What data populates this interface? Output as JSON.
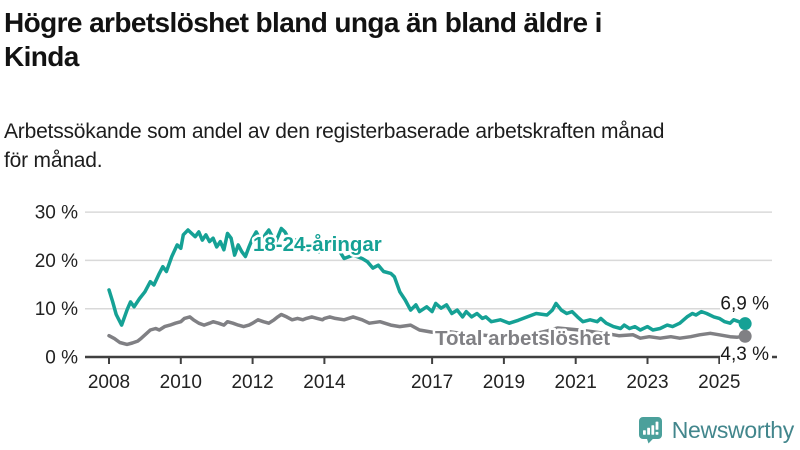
{
  "header": {
    "title_lines": [
      "Högre arbetslöshet bland unga än bland äldre i",
      "Kinda"
    ],
    "subtitle_lines": [
      "Arbetssökande som andel av den registerbaserade arbetskraften månad",
      "för månad."
    ]
  },
  "footer": {
    "logo_text": "Newsworthy",
    "logo_icon": "newsworthy-speech-bubble-bar-chart-icon",
    "logo_icon_color": "#4ba09b",
    "logo_text_color": "#42868c"
  },
  "chart_data": {
    "type": "line",
    "title": "Högre arbetslöshet bland unga än bland äldre i Kinda",
    "subtitle": "Arbetssökande som andel av den registerbaserade arbetskraften månad för månad.",
    "xlabel": "",
    "ylabel": "",
    "x_axis": {
      "ticks": [
        {
          "v": 2008,
          "label": "2008"
        },
        {
          "v": 2010,
          "label": "2010"
        },
        {
          "v": 2012,
          "label": "2012"
        },
        {
          "v": 2014,
          "label": "2014"
        },
        {
          "v": 2017,
          "label": "2017"
        },
        {
          "v": 2019,
          "label": "2019"
        },
        {
          "v": 2021,
          "label": "2021"
        },
        {
          "v": 2023,
          "label": "2023"
        },
        {
          "v": 2025,
          "label": "2025"
        }
      ],
      "range": [
        2007.3,
        2026.3
      ]
    },
    "y_axis": {
      "ticks": [
        {
          "v": 0,
          "label": "0 %"
        },
        {
          "v": 10,
          "label": "10 %"
        },
        {
          "v": 20,
          "label": "20 %"
        },
        {
          "v": 30,
          "label": "30 %"
        }
      ],
      "range": [
        0,
        32
      ],
      "unit": "%"
    },
    "style": {
      "axis_color": "#404040",
      "grid_color": "#d9d9d9",
      "tick_label_color": "#222222",
      "grid_on": true,
      "legend": "inline-labels"
    },
    "series": [
      {
        "name": "18-24-åringar",
        "color": "#15a195",
        "end_label": "6,9 %",
        "end_value": 6.9,
        "points": [
          [
            2008.0,
            13.9
          ],
          [
            2008.1,
            11.5
          ],
          [
            2008.2,
            8.8
          ],
          [
            2008.35,
            6.6
          ],
          [
            2008.5,
            9.7
          ],
          [
            2008.6,
            11.4
          ],
          [
            2008.7,
            10.4
          ],
          [
            2008.85,
            12.1
          ],
          [
            2009.0,
            13.5
          ],
          [
            2009.15,
            15.6
          ],
          [
            2009.25,
            14.9
          ],
          [
            2009.4,
            17.3
          ],
          [
            2009.5,
            18.7
          ],
          [
            2009.6,
            17.7
          ],
          [
            2009.75,
            20.8
          ],
          [
            2009.9,
            23.2
          ],
          [
            2010.0,
            22.5
          ],
          [
            2010.07,
            25.3
          ],
          [
            2010.2,
            26.3
          ],
          [
            2010.3,
            25.6
          ],
          [
            2010.4,
            24.9
          ],
          [
            2010.5,
            25.9
          ],
          [
            2010.6,
            24.2
          ],
          [
            2010.7,
            25.3
          ],
          [
            2010.8,
            23.9
          ],
          [
            2010.9,
            24.6
          ],
          [
            2011.0,
            22.8
          ],
          [
            2011.1,
            23.9
          ],
          [
            2011.2,
            22.2
          ],
          [
            2011.3,
            25.6
          ],
          [
            2011.4,
            24.6
          ],
          [
            2011.5,
            21.1
          ],
          [
            2011.6,
            23.2
          ],
          [
            2011.7,
            21.8
          ],
          [
            2011.8,
            20.8
          ],
          [
            2011.9,
            22.8
          ],
          [
            2012.0,
            24.6
          ],
          [
            2012.1,
            25.9
          ],
          [
            2012.17,
            24.9
          ],
          [
            2012.25,
            23.9
          ],
          [
            2012.35,
            25.3
          ],
          [
            2012.45,
            26.3
          ],
          [
            2012.55,
            24.9
          ],
          [
            2012.65,
            23.9
          ],
          [
            2012.8,
            26.6
          ],
          [
            2012.9,
            25.9
          ],
          [
            2013.0,
            24.6
          ],
          [
            2013.1,
            23.2
          ],
          [
            2013.2,
            24.2
          ],
          [
            2013.3,
            22.8
          ],
          [
            2013.4,
            23.9
          ],
          [
            2013.55,
            22.2
          ],
          [
            2013.7,
            23.2
          ],
          [
            2013.85,
            21.8
          ],
          [
            2013.95,
            22.8
          ],
          [
            2014.05,
            23.5
          ],
          [
            2014.2,
            22.5
          ],
          [
            2014.35,
            22.8
          ],
          [
            2014.55,
            20.4
          ],
          [
            2014.8,
            21.1
          ],
          [
            2015.05,
            20.4
          ],
          [
            2015.2,
            19.7
          ],
          [
            2015.35,
            18.4
          ],
          [
            2015.5,
            19.0
          ],
          [
            2015.65,
            17.7
          ],
          [
            2015.85,
            17.3
          ],
          [
            2015.95,
            16.6
          ],
          [
            2016.1,
            13.5
          ],
          [
            2016.25,
            11.8
          ],
          [
            2016.4,
            9.7
          ],
          [
            2016.55,
            10.8
          ],
          [
            2016.65,
            9.4
          ],
          [
            2016.85,
            10.4
          ],
          [
            2017.0,
            9.4
          ],
          [
            2017.1,
            11.1
          ],
          [
            2017.25,
            10.1
          ],
          [
            2017.4,
            10.8
          ],
          [
            2017.55,
            9.0
          ],
          [
            2017.7,
            9.7
          ],
          [
            2017.85,
            8.3
          ],
          [
            2017.95,
            9.4
          ],
          [
            2018.1,
            8.3
          ],
          [
            2018.25,
            9.0
          ],
          [
            2018.4,
            8.0
          ],
          [
            2018.5,
            8.3
          ],
          [
            2018.65,
            7.3
          ],
          [
            2018.9,
            7.7
          ],
          [
            2019.15,
            7.0
          ],
          [
            2019.4,
            7.6
          ],
          [
            2019.65,
            8.3
          ],
          [
            2019.9,
            9.0
          ],
          [
            2020.2,
            8.7
          ],
          [
            2020.35,
            9.7
          ],
          [
            2020.45,
            11.1
          ],
          [
            2020.6,
            9.7
          ],
          [
            2020.75,
            9.0
          ],
          [
            2020.9,
            9.4
          ],
          [
            2021.05,
            8.3
          ],
          [
            2021.2,
            7.3
          ],
          [
            2021.4,
            7.7
          ],
          [
            2021.6,
            7.3
          ],
          [
            2021.7,
            8.0
          ],
          [
            2021.85,
            7.0
          ],
          [
            2022.05,
            6.3
          ],
          [
            2022.25,
            5.9
          ],
          [
            2022.35,
            6.6
          ],
          [
            2022.5,
            5.9
          ],
          [
            2022.65,
            6.3
          ],
          [
            2022.8,
            5.6
          ],
          [
            2023.0,
            6.3
          ],
          [
            2023.15,
            5.6
          ],
          [
            2023.35,
            5.9
          ],
          [
            2023.55,
            6.6
          ],
          [
            2023.7,
            6.3
          ],
          [
            2023.9,
            7.0
          ],
          [
            2024.1,
            8.3
          ],
          [
            2024.25,
            9.0
          ],
          [
            2024.35,
            8.7
          ],
          [
            2024.5,
            9.4
          ],
          [
            2024.65,
            9.0
          ],
          [
            2024.85,
            8.3
          ],
          [
            2025.0,
            8.0
          ],
          [
            2025.15,
            7.3
          ],
          [
            2025.3,
            7.0
          ],
          [
            2025.4,
            7.7
          ],
          [
            2025.55,
            7.3
          ],
          [
            2025.72,
            6.9
          ]
        ]
      },
      {
        "name": "Total arbetslöshet",
        "color": "#808084",
        "end_label": "4,3 %",
        "end_value": 4.3,
        "points": [
          [
            2008.0,
            4.4
          ],
          [
            2008.15,
            3.8
          ],
          [
            2008.3,
            3.0
          ],
          [
            2008.5,
            2.6
          ],
          [
            2008.65,
            2.9
          ],
          [
            2008.8,
            3.3
          ],
          [
            2008.9,
            3.9
          ],
          [
            2009.05,
            4.9
          ],
          [
            2009.15,
            5.6
          ],
          [
            2009.3,
            5.9
          ],
          [
            2009.4,
            5.6
          ],
          [
            2009.55,
            6.3
          ],
          [
            2009.7,
            6.6
          ],
          [
            2009.85,
            7.0
          ],
          [
            2010.0,
            7.3
          ],
          [
            2010.1,
            8.0
          ],
          [
            2010.25,
            8.3
          ],
          [
            2010.35,
            7.7
          ],
          [
            2010.5,
            7.0
          ],
          [
            2010.65,
            6.6
          ],
          [
            2010.8,
            7.0
          ],
          [
            2010.9,
            7.3
          ],
          [
            2011.05,
            7.0
          ],
          [
            2011.2,
            6.6
          ],
          [
            2011.3,
            7.3
          ],
          [
            2011.45,
            7.0
          ],
          [
            2011.6,
            6.6
          ],
          [
            2011.75,
            6.3
          ],
          [
            2011.9,
            6.6
          ],
          [
            2012.0,
            7.0
          ],
          [
            2012.15,
            7.7
          ],
          [
            2012.3,
            7.3
          ],
          [
            2012.45,
            7.0
          ],
          [
            2012.6,
            7.7
          ],
          [
            2012.7,
            8.3
          ],
          [
            2012.8,
            8.8
          ],
          [
            2012.95,
            8.3
          ],
          [
            2013.1,
            7.7
          ],
          [
            2013.25,
            8.0
          ],
          [
            2013.4,
            7.7
          ],
          [
            2013.5,
            8.0
          ],
          [
            2013.65,
            8.3
          ],
          [
            2013.8,
            8.0
          ],
          [
            2013.95,
            7.7
          ],
          [
            2014.0,
            8.0
          ],
          [
            2014.15,
            8.3
          ],
          [
            2014.3,
            8.0
          ],
          [
            2014.55,
            7.7
          ],
          [
            2014.8,
            8.3
          ],
          [
            2015.05,
            7.7
          ],
          [
            2015.25,
            7.0
          ],
          [
            2015.55,
            7.3
          ],
          [
            2015.85,
            6.6
          ],
          [
            2016.1,
            6.3
          ],
          [
            2016.4,
            6.6
          ],
          [
            2016.65,
            5.6
          ],
          [
            2016.95,
            5.2
          ],
          [
            2017.2,
            4.9
          ],
          [
            2017.5,
            5.2
          ],
          [
            2017.8,
            4.9
          ],
          [
            2018.05,
            4.6
          ],
          [
            2018.3,
            4.6
          ],
          [
            2018.6,
            4.4
          ],
          [
            2019.0,
            4.6
          ],
          [
            2019.4,
            4.4
          ],
          [
            2019.8,
            4.7
          ],
          [
            2020.2,
            5.4
          ],
          [
            2020.5,
            6.0
          ],
          [
            2020.8,
            5.8
          ],
          [
            2021.1,
            5.6
          ],
          [
            2021.5,
            5.2
          ],
          [
            2021.9,
            4.8
          ],
          [
            2022.2,
            4.4
          ],
          [
            2022.6,
            4.6
          ],
          [
            2022.8,
            3.9
          ],
          [
            2023.05,
            4.2
          ],
          [
            2023.35,
            3.9
          ],
          [
            2023.65,
            4.2
          ],
          [
            2023.9,
            3.9
          ],
          [
            2024.2,
            4.2
          ],
          [
            2024.45,
            4.6
          ],
          [
            2024.75,
            4.9
          ],
          [
            2025.0,
            4.6
          ],
          [
            2025.3,
            4.2
          ],
          [
            2025.5,
            4.1
          ],
          [
            2025.72,
            4.3
          ]
        ]
      }
    ]
  }
}
